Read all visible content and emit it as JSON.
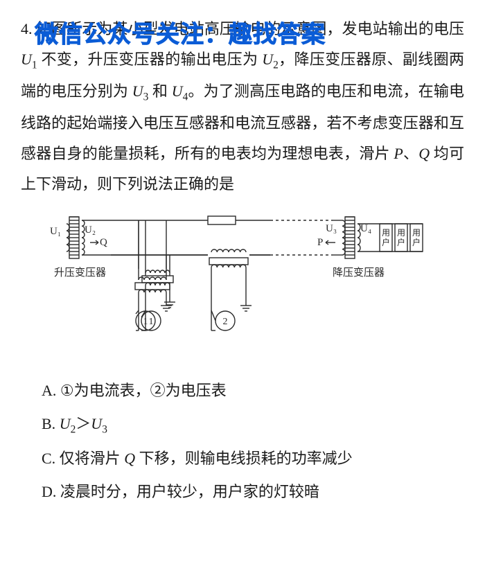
{
  "question": {
    "number": "4.",
    "stem_pre": "如图所示为某小型发电站高压输电的示意图，发电站输出的电压 ",
    "u1": "U",
    "u1sub": "1",
    "stem_a": " 不变，升压变压器的输出电压为 ",
    "u2": "U",
    "u2sub": "2",
    "stem_b": "，降压变压器原、副线圈两端的电压分别为 ",
    "u3": "U",
    "u3sub": "3",
    "and": " 和 ",
    "u4": "U",
    "u4sub": "4",
    "stem_c": "。为了测高压电路的电压和电流，在输电线路的起始端接入电压互感器和电流互感器，若不考虑变压器和互感器自身的能量损耗，所有的电表均为理想电表，滑片 ",
    "p": "P",
    "dunhao": "、",
    "q": "Q",
    "stem_d": " 均可上下滑动，则下列说法正确的是"
  },
  "watermark": "微信公众号关注：趣找答案",
  "diagram": {
    "u1": "U₁",
    "u2": "U₂",
    "u3": "U₃",
    "u4": "U₄",
    "q": "Q",
    "p": "P",
    "left_label": "升压变压器",
    "right_label": "降压变压器",
    "meter1": "1",
    "meter2": "2",
    "user": "用户",
    "stroke": "#2a2a2a",
    "stroke_w": 1.4,
    "font": "15px SimSun"
  },
  "options": {
    "A": "A. ①为电流表，②为电压表",
    "B_pre": "B. ",
    "B_u2": "U",
    "B_u2sub": "2",
    "B_gt": "＞",
    "B_u3": "U",
    "B_u3sub": "3",
    "C_pre": "C. 仅将滑片 ",
    "C_q": "Q",
    "C_post": " 下移，则输电线损耗的功率减少",
    "D": "D. 凌晨时分，用户较少，用户家的灯较暗"
  }
}
